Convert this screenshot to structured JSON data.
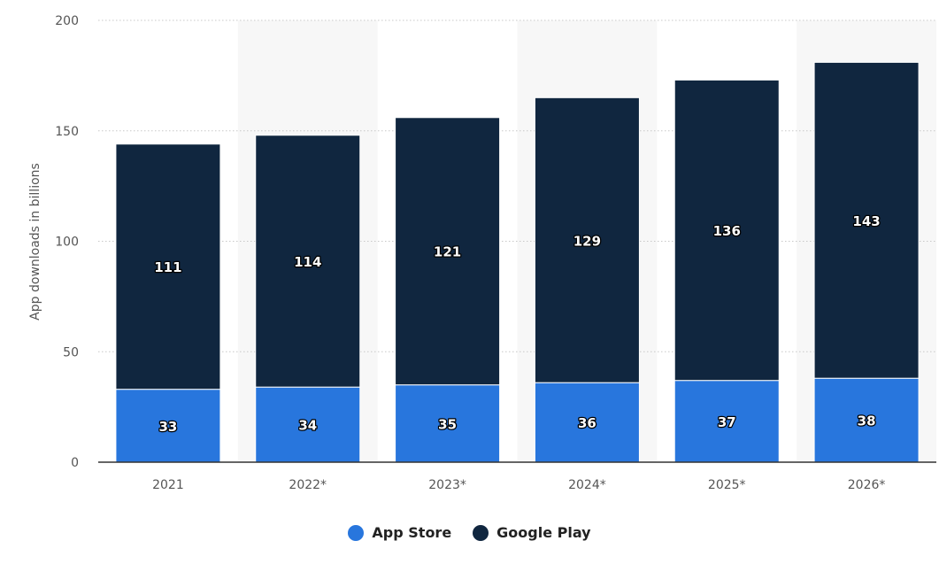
{
  "chart_data": {
    "type": "bar",
    "stacked": true,
    "title": "",
    "xlabel": "",
    "ylabel": "App downloads in billions",
    "categories": [
      "2021",
      "2022*",
      "2023*",
      "2024*",
      "2025*",
      "2026*"
    ],
    "series": [
      {
        "name": "App Store",
        "color": "#2876dd",
        "values": [
          33,
          34,
          35,
          36,
          37,
          38
        ]
      },
      {
        "name": "Google Play",
        "color": "#10263f",
        "values": [
          111,
          114,
          121,
          129,
          136,
          143
        ]
      }
    ],
    "ylim": [
      0,
      200
    ],
    "yticks": [
      "0",
      "50",
      "100",
      "150",
      "200"
    ],
    "grid": true,
    "legend_position": "bottom-center"
  }
}
